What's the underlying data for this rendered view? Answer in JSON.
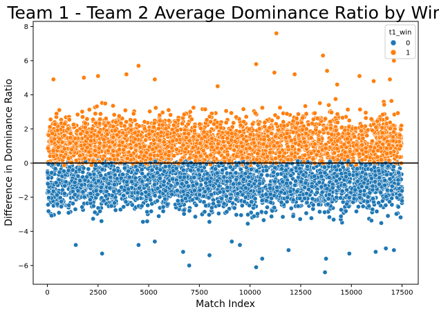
{
  "chart_data": {
    "type": "scatter",
    "title": "Team 1 - Team 2 Average Dominance Ratio by Win",
    "xlabel": "Match Index",
    "ylabel": "Difference in Dominance Ratio",
    "xlim": [
      -700,
      18300
    ],
    "ylim": [
      -7.1,
      8.3
    ],
    "xticks": [
      0,
      2500,
      5000,
      7500,
      10000,
      12500,
      15000,
      17500
    ],
    "xtick_labels": [
      "0",
      "2500",
      "5000",
      "7500",
      "10000",
      "12500",
      "15000",
      "17500"
    ],
    "yticks": [
      -6,
      -4,
      -2,
      0,
      2,
      4,
      6,
      8
    ],
    "ytick_labels": [
      "−6",
      "−4",
      "−2",
      "0",
      "2",
      "4",
      "6",
      "8"
    ],
    "reference_line": {
      "y": 0,
      "color": "#000000"
    },
    "grid": false,
    "legend": {
      "title": "t1_win",
      "placement": "top-right",
      "entries": [
        {
          "label": "0",
          "color": "#1f77b4"
        },
        {
          "label": "1",
          "color": "#ff7f0e"
        }
      ]
    },
    "series": [
      {
        "name": "0",
        "color": "#1f77b4",
        "x_range": [
          0,
          17500
        ],
        "points": [
          {
            "x": 13700,
            "y": -6.4
          },
          {
            "x": 10300,
            "y": -6.1
          },
          {
            "x": 7000,
            "y": -6.0
          },
          {
            "x": 13750,
            "y": -5.6
          },
          {
            "x": 16200,
            "y": -5.2
          },
          {
            "x": 17100,
            "y": -5.1
          },
          {
            "x": 2700,
            "y": -5.3
          },
          {
            "x": 4500,
            "y": -4.8
          },
          {
            "x": 1400,
            "y": -4.8
          },
          {
            "x": 5300,
            "y": -4.6
          },
          {
            "x": 8000,
            "y": -5.4
          },
          {
            "x": 9500,
            "y": -4.8
          },
          {
            "x": 10600,
            "y": -5.6
          },
          {
            "x": 11900,
            "y": -5.1
          },
          {
            "x": 14900,
            "y": -5.3
          },
          {
            "x": 16700,
            "y": -5.0
          },
          {
            "x": 6700,
            "y": -5.2
          },
          {
            "x": 9100,
            "y": -4.6
          }
        ]
      },
      {
        "name": "1",
        "color": "#ff7f0e",
        "x_range": [
          0,
          17500
        ],
        "points": [
          {
            "x": 11300,
            "y": 7.6
          },
          {
            "x": 13600,
            "y": 6.3
          },
          {
            "x": 10300,
            "y": 5.8
          },
          {
            "x": 4500,
            "y": 5.7
          },
          {
            "x": 13800,
            "y": 5.4
          },
          {
            "x": 17100,
            "y": 6.0
          },
          {
            "x": 11200,
            "y": 5.3
          },
          {
            "x": 12200,
            "y": 5.2
          },
          {
            "x": 2500,
            "y": 5.1
          },
          {
            "x": 3900,
            "y": 5.2
          },
          {
            "x": 5300,
            "y": 4.9
          },
          {
            "x": 15400,
            "y": 5.1
          },
          {
            "x": 16100,
            "y": 4.8
          },
          {
            "x": 16900,
            "y": 4.9
          },
          {
            "x": 300,
            "y": 4.9
          },
          {
            "x": 1800,
            "y": 5.0
          },
          {
            "x": 8400,
            "y": 4.5
          },
          {
            "x": 14300,
            "y": 4.6
          }
        ]
      }
    ]
  }
}
